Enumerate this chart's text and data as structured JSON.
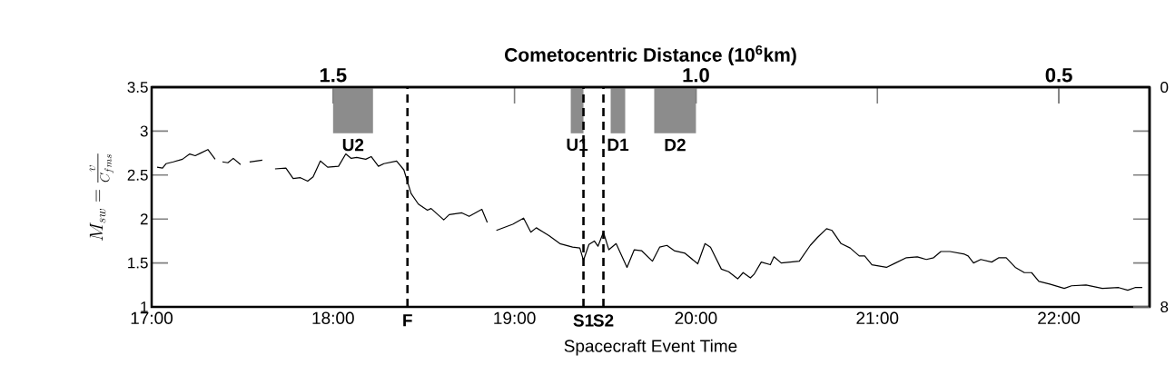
{
  "chart_data": {
    "type": "line",
    "x2label": "Cometocentric Distance (10$^{6}$km)",
    "xlabel": "Spacecraft Event Time",
    "ylabel": "M_{sw} = \\frac{v}{C_{fms}}",
    "xlim": [
      17,
      22.5
    ],
    "xticks": [
      {
        "value": 17,
        "label": "17:00"
      },
      {
        "value": 18,
        "label": "18:00"
      },
      {
        "value": 19,
        "label": "19:00"
      },
      {
        "value": 20,
        "label": "20:00"
      },
      {
        "value": 21,
        "label": "21:00"
      },
      {
        "value": 22,
        "label": "22:00"
      }
    ],
    "ylim": [
      1,
      3.5
    ],
    "yticks": [
      1,
      1.5,
      2,
      2.5,
      3,
      3.5
    ],
    "x2lim": [
      1.75,
      0.375
    ],
    "x2ticks": [
      1.5,
      {
        "value": 1.0,
        "label": "1.0"
      },
      0.5
    ],
    "y2lim": [
      8,
      0
    ],
    "y2ticks": [
      0,
      8
    ],
    "x": [
      17.03,
      17.06,
      17.08,
      17.12,
      17.17,
      17.21,
      17.24,
      17.27,
      17.31,
      17.35,
      17.37,
      17.39,
      17.42,
      17.45,
      17.49,
      17.52,
      17.54,
      17.61,
      17.65,
      17.68,
      17.74,
      17.78,
      17.82,
      17.86,
      17.89,
      17.93,
      17.97,
      18.03,
      18.07,
      18.1,
      18.13,
      18.18,
      18.21,
      18.25,
      18.28,
      18.35,
      18.39,
      18.43,
      18.47,
      18.52,
      18.54,
      18.61,
      18.64,
      18.71,
      18.75,
      18.82,
      18.85,
      18.88,
      18.9,
      18.99,
      19.05,
      19.09,
      19.12,
      19.19,
      19.25,
      19.32,
      19.36,
      19.38,
      19.41,
      19.44,
      19.46,
      19.49,
      19.52,
      19.56,
      19.62,
      19.66,
      19.7,
      19.76,
      19.8,
      19.84,
      19.88,
      19.94,
      20.01,
      20.05,
      20.08,
      20.14,
      20.18,
      20.23,
      20.26,
      20.3,
      20.32,
      20.36,
      20.41,
      20.43,
      20.47,
      20.57,
      20.63,
      20.67,
      20.72,
      20.75,
      20.8,
      20.85,
      20.9,
      20.93,
      20.97,
      21.05,
      21.1,
      21.16,
      21.22,
      21.27,
      21.31,
      21.35,
      21.4,
      21.48,
      21.5,
      21.53,
      21.57,
      21.63,
      21.67,
      21.71,
      21.76,
      21.81,
      21.85,
      21.89,
      21.95,
      22.03,
      22.07,
      22.15,
      22.24,
      22.33,
      22.38,
      22.42,
      22.46
    ],
    "series": [
      {
        "color": "#000000",
        "values": [
          2.59,
          2.58,
          2.63,
          2.65,
          2.68,
          2.74,
          2.72,
          2.75,
          2.79,
          2.68,
          null,
          2.65,
          2.64,
          2.69,
          2.62,
          null,
          2.65,
          2.67,
          null,
          2.57,
          2.58,
          2.46,
          2.47,
          2.43,
          2.48,
          2.66,
          2.59,
          2.6,
          2.74,
          2.69,
          2.7,
          2.68,
          2.71,
          2.6,
          2.63,
          2.66,
          2.56,
          2.29,
          2.17,
          2.1,
          2.12,
          1.99,
          2.05,
          2.07,
          2.03,
          2.11,
          1.96,
          null,
          1.87,
          1.94,
          2.01,
          1.85,
          1.9,
          1.81,
          1.72,
          1.68,
          1.67,
          1.53,
          1.71,
          1.75,
          1.69,
          1.85,
          1.65,
          1.72,
          1.45,
          1.65,
          1.64,
          1.52,
          1.68,
          1.7,
          1.64,
          1.61,
          1.49,
          1.72,
          1.68,
          1.43,
          1.4,
          1.32,
          1.39,
          1.33,
          1.37,
          1.51,
          1.48,
          1.57,
          1.5,
          1.52,
          1.7,
          1.79,
          1.89,
          1.87,
          1.72,
          1.67,
          1.58,
          1.58,
          1.48,
          1.45,
          1.5,
          1.56,
          1.57,
          1.54,
          1.56,
          1.63,
          1.63,
          1.6,
          1.58,
          1.5,
          1.54,
          1.51,
          1.56,
          1.56,
          1.45,
          1.39,
          1.39,
          1.29,
          1.26,
          1.21,
          1.24,
          1.25,
          1.21,
          1.22,
          1.19,
          1.22,
          1.22
        ]
      }
    ],
    "ref_lines": [
      {
        "axis": "x",
        "value": 18.41,
        "label": "F",
        "line_style": "dashed"
      },
      {
        "axis": "x",
        "value": 19.38,
        "label": "S1",
        "line_style": "dashed"
      },
      {
        "axis": "x",
        "value": 19.49,
        "label": "S2",
        "line_style": "dashed"
      }
    ],
    "bands": [
      {
        "axis": "x",
        "from": 18.0,
        "to": 18.22,
        "label": "U2",
        "color": "#8c8c8c"
      },
      {
        "axis": "x",
        "from": 19.31,
        "to": 19.38,
        "label": "U1",
        "color": "#8c8c8c"
      },
      {
        "axis": "x",
        "from": 19.53,
        "to": 19.61,
        "label": "D1",
        "color": "#8c8c8c"
      },
      {
        "axis": "x",
        "from": 19.77,
        "to": 20.0,
        "label": "D2",
        "color": "#8c8c8c"
      }
    ]
  }
}
